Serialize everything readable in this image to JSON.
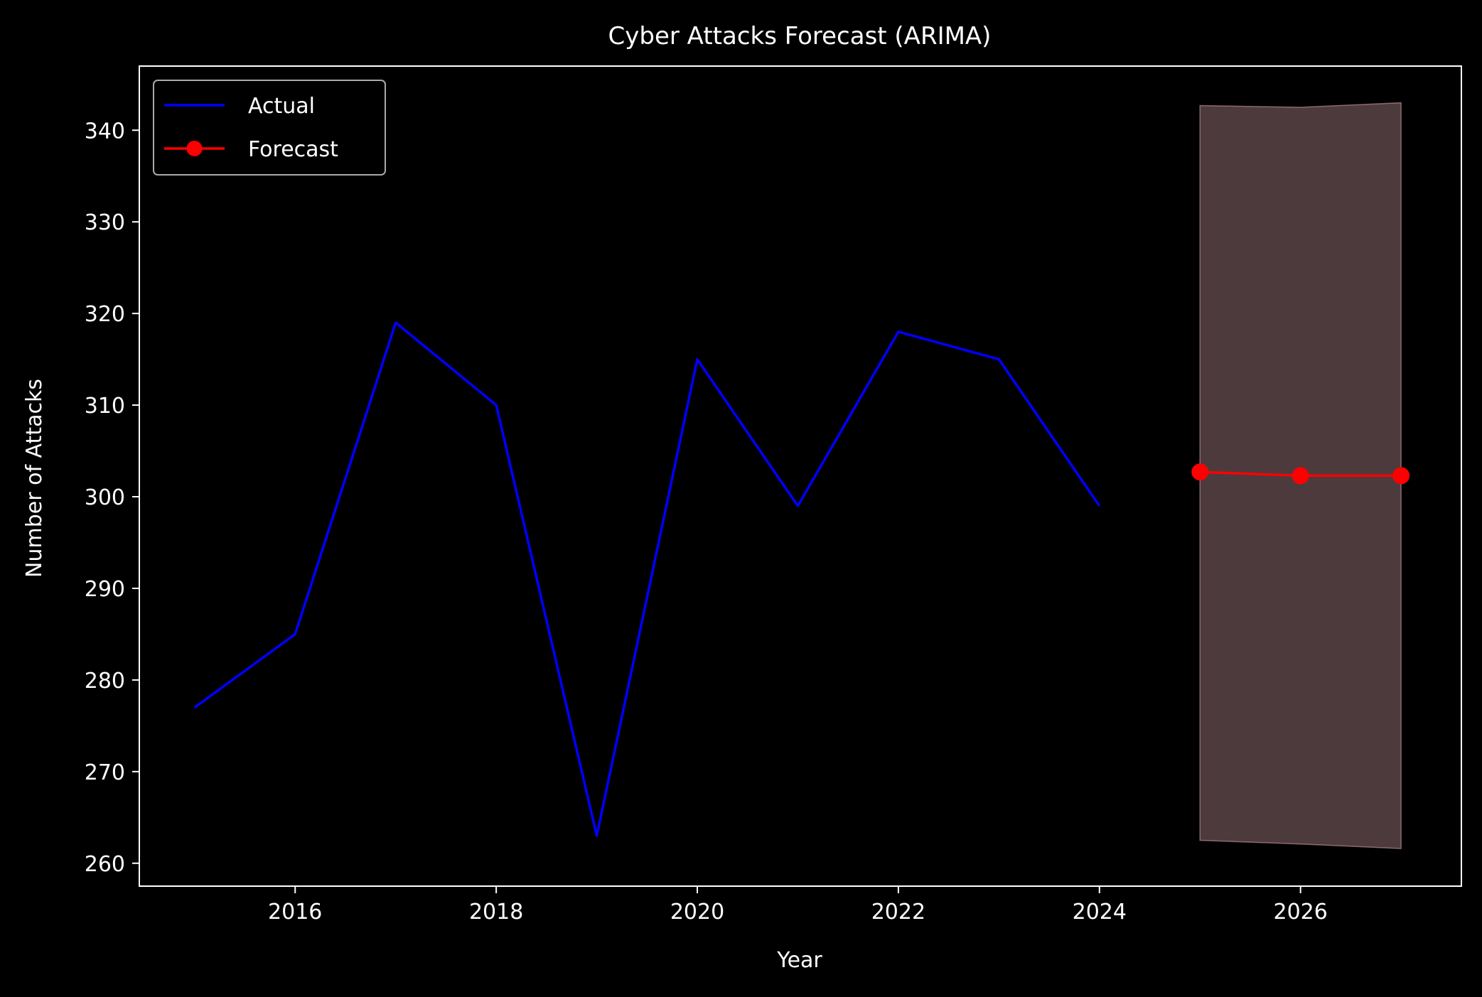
{
  "chart_data": {
    "type": "line",
    "title": "Cyber Attacks Forecast (ARIMA)",
    "xlabel": "Year",
    "ylabel": "Number of Attacks",
    "xlim": [
      2014.45,
      2027.6
    ],
    "ylim": [
      257.5,
      347.0
    ],
    "xticks": [
      2016,
      2018,
      2020,
      2022,
      2024,
      2026
    ],
    "yticks": [
      260,
      270,
      280,
      290,
      300,
      310,
      320,
      330,
      340
    ],
    "grid": false,
    "legend_position": "top-left",
    "background": "#000000",
    "series": [
      {
        "name": "Actual",
        "color": "#0000ff",
        "marker": "none",
        "x": [
          2015,
          2016,
          2017,
          2018,
          2019,
          2020,
          2021,
          2022,
          2023,
          2024
        ],
        "values": [
          277,
          285,
          319,
          310,
          263,
          315,
          299,
          318,
          315,
          299
        ]
      },
      {
        "name": "Forecast",
        "color": "#ff0000",
        "marker": "circle",
        "x": [
          2025,
          2026,
          2027
        ],
        "values": [
          302.7,
          302.3,
          302.3
        ]
      }
    ],
    "confidence_band": {
      "color": "#ffc0cb",
      "opacity": 0.3,
      "x": [
        2025,
        2026,
        2027
      ],
      "lower": [
        262.5,
        262.1,
        261.6
      ],
      "upper": [
        342.7,
        342.5,
        343.0
      ]
    }
  }
}
